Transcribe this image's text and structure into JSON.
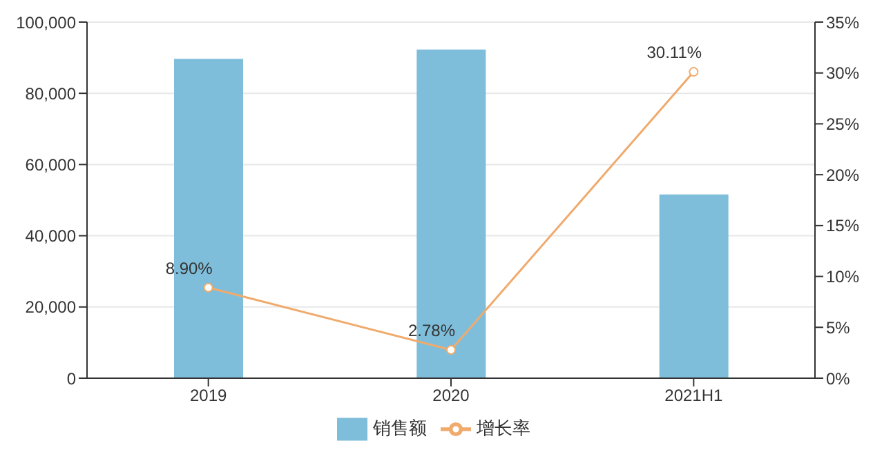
{
  "chart_data": {
    "type": "bar",
    "categories": [
      "2019",
      "2020",
      "2021H1"
    ],
    "series": [
      {
        "name": "销售额",
        "color": "#7fbedb",
        "values": [
          89700,
          92300,
          51600
        ]
      },
      {
        "name": "增长率",
        "type": "line",
        "axis": "y2",
        "color": "#f0aa6c",
        "values": [
          8.9,
          2.78,
          30.11
        ],
        "value_labels": [
          "8.90%",
          "2.78%",
          "30.11%"
        ],
        "marker": "circle"
      }
    ],
    "ylim": [
      0,
      100000
    ],
    "yticks": [
      {
        "value": 0,
        "label": "0"
      },
      {
        "value": 20000,
        "label": "20,000"
      },
      {
        "value": 40000,
        "label": "40,000"
      },
      {
        "value": 60000,
        "label": "60,000"
      },
      {
        "value": 80000,
        "label": "80,000"
      },
      {
        "value": 100000,
        "label": "100,000"
      }
    ],
    "y2lim": [
      0,
      35
    ],
    "y2ticks": [
      {
        "value": 0,
        "label": "0%"
      },
      {
        "value": 5,
        "label": "5%"
      },
      {
        "value": 10,
        "label": "10%"
      },
      {
        "value": 15,
        "label": "15%"
      },
      {
        "value": 20,
        "label": "20%"
      },
      {
        "value": 25,
        "label": "25%"
      },
      {
        "value": 30,
        "label": "30%"
      },
      {
        "value": 35,
        "label": "35%"
      }
    ],
    "grid": "y",
    "legend": "bottom"
  }
}
